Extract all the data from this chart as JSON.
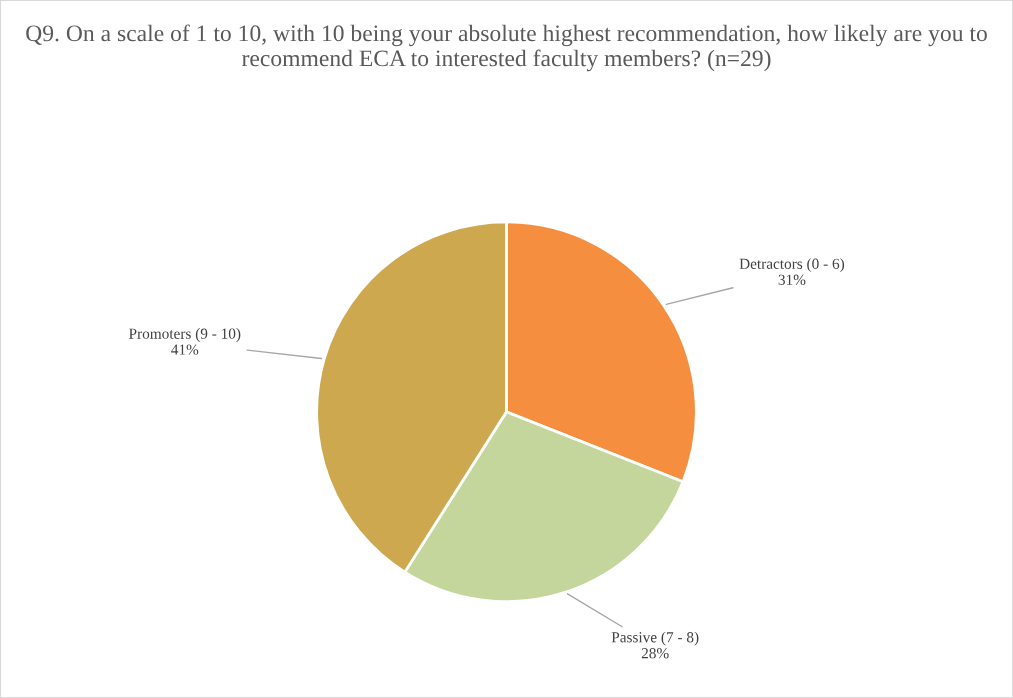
{
  "chart_data": {
    "type": "pie",
    "title": "Q9. On a scale of 1 to 10, with 10 being your absolute highest recommendation, how likely are you to recommend ECA to interested faculty members? (n=29)",
    "categories": [
      "Detractors (0 - 6)",
      "Passive (7 - 8)",
      "Promoters (9 - 10)"
    ],
    "values": [
      31,
      28,
      41
    ],
    "value_labels": [
      "31%",
      "28%",
      "41%"
    ],
    "colors": [
      "#f68e3f",
      "#c4d69b",
      "#cda84f"
    ],
    "legend": false
  }
}
